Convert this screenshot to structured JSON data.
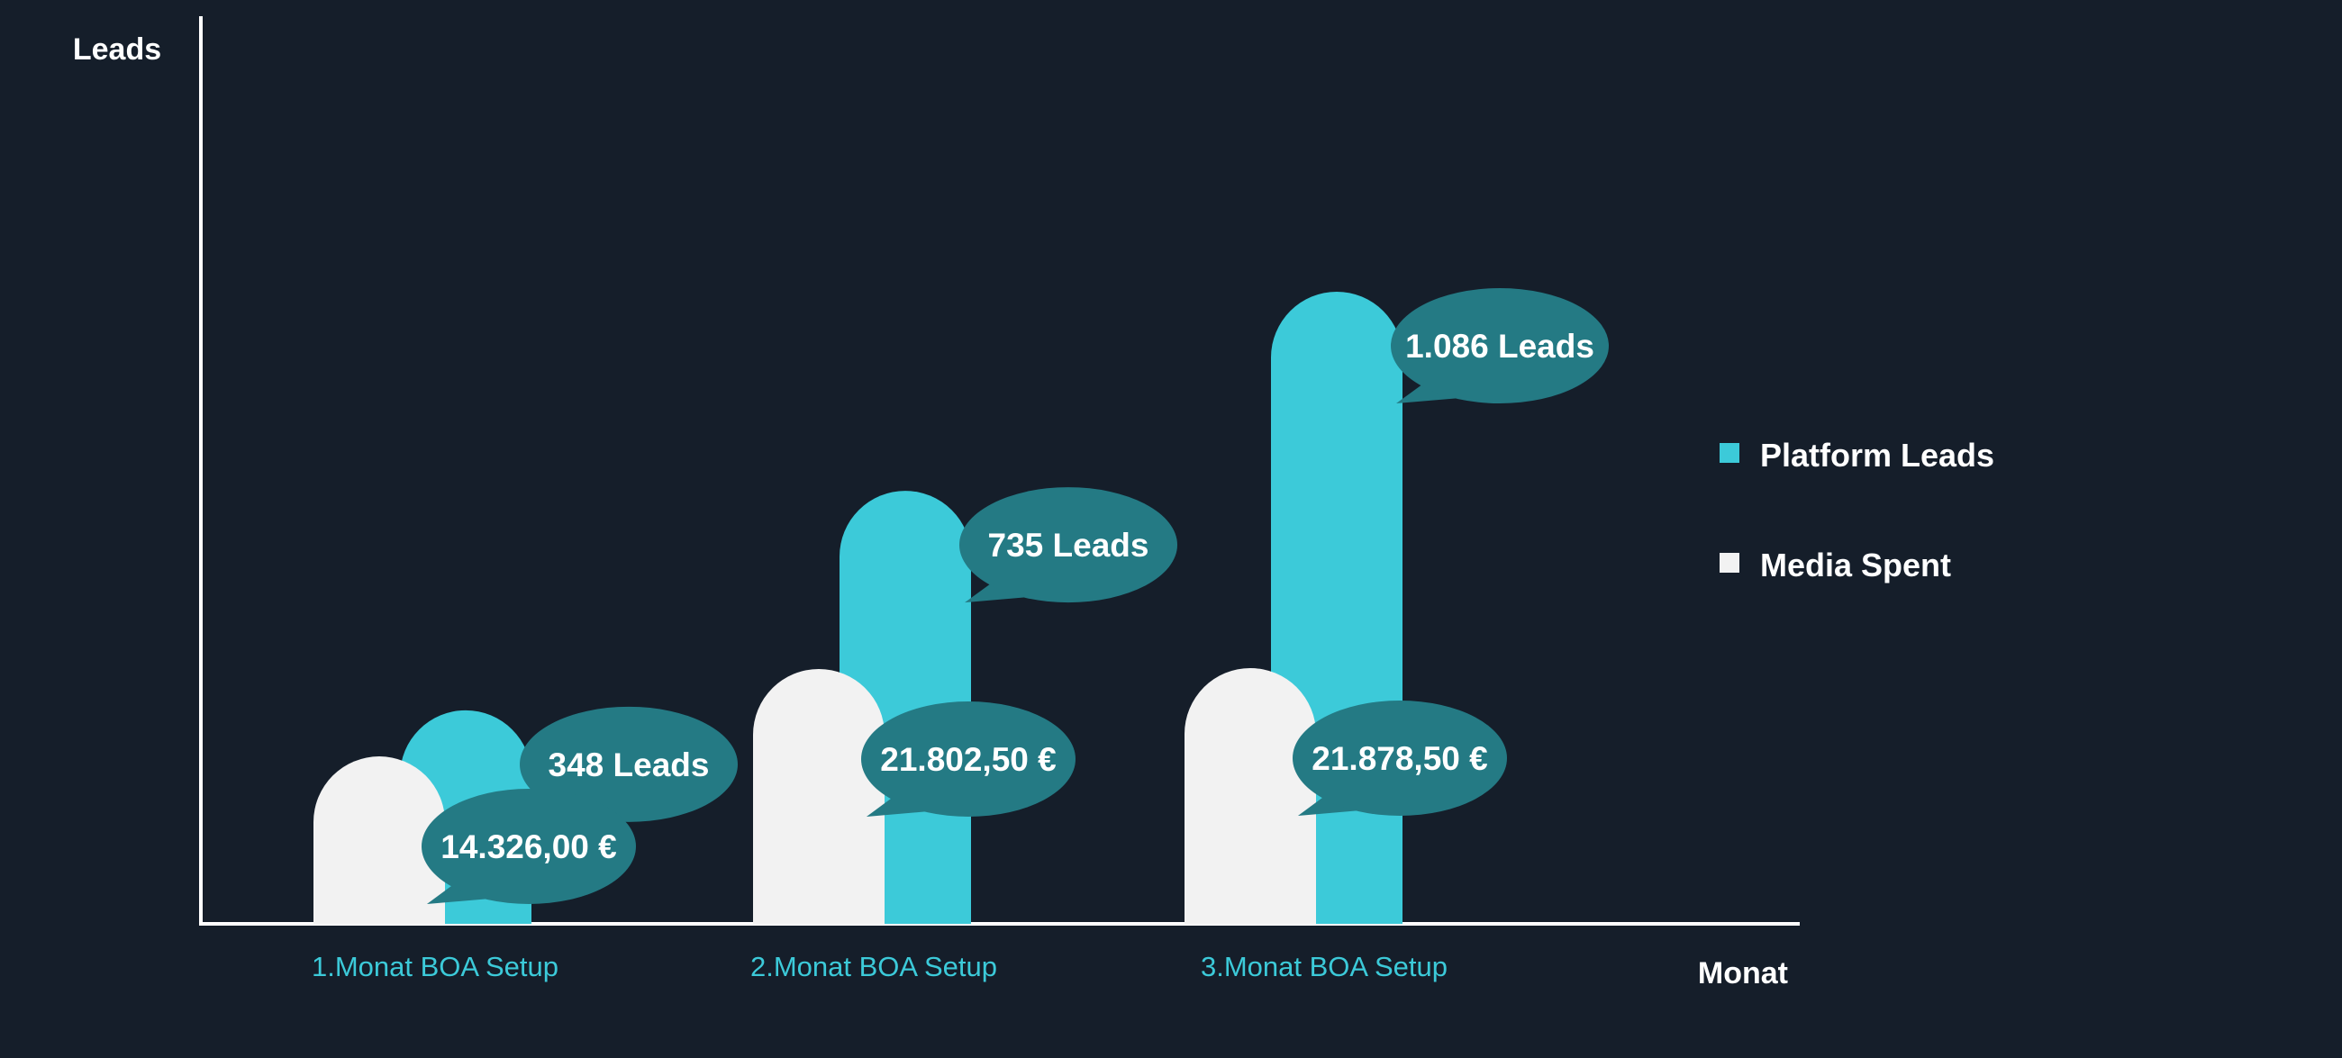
{
  "chart_data": {
    "type": "bar",
    "ylabel": "Leads",
    "xlabel": "Monat",
    "categories": [
      "1.Monat BOA Setup",
      "2.Monat BOA Setup",
      "3.Monat BOA Setup"
    ],
    "series": [
      {
        "name": "Media Spent",
        "values": [
          14326.0,
          21802.5,
          21878.5
        ],
        "labels": [
          "14.326,00 €",
          "21.802,50 €",
          "21.878,50 €"
        ],
        "color": "#f2f2f2"
      },
      {
        "name": "Platform Leads",
        "values": [
          348,
          735,
          1086
        ],
        "labels": [
          "348 Leads",
          "735 Leads",
          "1.086 Leads"
        ],
        "color": "#3ccad9"
      }
    ],
    "legend": {
      "position": "right",
      "items": [
        "Platform Leads",
        "Media Spent"
      ]
    },
    "grid": false,
    "colors": {
      "background": "#151e2a",
      "axis": "#ffffff",
      "bubble": "#247a84",
      "category_label": "#3ccad9",
      "text": "#ffffff"
    }
  }
}
